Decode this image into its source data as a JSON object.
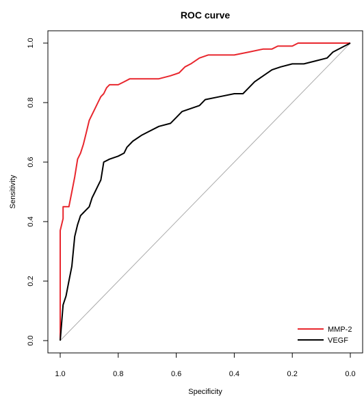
{
  "chart_data": {
    "type": "line",
    "title": "ROC curve",
    "xlabel": "Specificity",
    "ylabel": "Sensitivity",
    "xlim": [
      1.0,
      0.0
    ],
    "ylim": [
      0.0,
      1.0
    ],
    "x_reversed": true,
    "x_ticks": [
      1.0,
      0.8,
      0.6,
      0.4,
      0.2,
      0.0
    ],
    "y_ticks": [
      0.0,
      0.2,
      0.4,
      0.6,
      0.8,
      1.0
    ],
    "x_tick_labels": [
      "1.0",
      "0.8",
      "0.6",
      "0.4",
      "0.2",
      "0.0"
    ],
    "y_tick_labels": [
      "0.0",
      "0.2",
      "0.4",
      "0.6",
      "0.8",
      "1.0"
    ],
    "grid": false,
    "legend_position": "bottom-right",
    "reference_line": {
      "from": [
        1.0,
        0.0
      ],
      "to": [
        0.0,
        1.0
      ],
      "color": "#aaaaaa"
    },
    "series": [
      {
        "name": "MMP-2",
        "color": "#e8262d",
        "points": [
          [
            1.0,
            0.0
          ],
          [
            1.0,
            0.37
          ],
          [
            0.99,
            0.41
          ],
          [
            0.99,
            0.45
          ],
          [
            0.97,
            0.45
          ],
          [
            0.96,
            0.5
          ],
          [
            0.95,
            0.55
          ],
          [
            0.94,
            0.61
          ],
          [
            0.93,
            0.63
          ],
          [
            0.92,
            0.66
          ],
          [
            0.91,
            0.7
          ],
          [
            0.9,
            0.74
          ],
          [
            0.89,
            0.76
          ],
          [
            0.88,
            0.78
          ],
          [
            0.87,
            0.8
          ],
          [
            0.86,
            0.82
          ],
          [
            0.85,
            0.83
          ],
          [
            0.84,
            0.85
          ],
          [
            0.83,
            0.86
          ],
          [
            0.8,
            0.86
          ],
          [
            0.78,
            0.87
          ],
          [
            0.76,
            0.88
          ],
          [
            0.7,
            0.88
          ],
          [
            0.66,
            0.88
          ],
          [
            0.62,
            0.89
          ],
          [
            0.59,
            0.9
          ],
          [
            0.57,
            0.92
          ],
          [
            0.55,
            0.93
          ],
          [
            0.52,
            0.95
          ],
          [
            0.49,
            0.96
          ],
          [
            0.4,
            0.96
          ],
          [
            0.35,
            0.97
          ],
          [
            0.3,
            0.98
          ],
          [
            0.27,
            0.98
          ],
          [
            0.25,
            0.99
          ],
          [
            0.2,
            0.99
          ],
          [
            0.18,
            1.0
          ],
          [
            0.0,
            1.0
          ]
        ]
      },
      {
        "name": "VEGF",
        "color": "#000000",
        "points": [
          [
            1.0,
            0.0
          ],
          [
            0.99,
            0.12
          ],
          [
            0.98,
            0.15
          ],
          [
            0.97,
            0.2
          ],
          [
            0.96,
            0.25
          ],
          [
            0.955,
            0.3
          ],
          [
            0.95,
            0.35
          ],
          [
            0.94,
            0.39
          ],
          [
            0.93,
            0.42
          ],
          [
            0.92,
            0.43
          ],
          [
            0.91,
            0.44
          ],
          [
            0.9,
            0.45
          ],
          [
            0.89,
            0.48
          ],
          [
            0.88,
            0.5
          ],
          [
            0.87,
            0.52
          ],
          [
            0.86,
            0.54
          ],
          [
            0.855,
            0.57
          ],
          [
            0.85,
            0.6
          ],
          [
            0.83,
            0.61
          ],
          [
            0.8,
            0.62
          ],
          [
            0.78,
            0.63
          ],
          [
            0.77,
            0.65
          ],
          [
            0.75,
            0.67
          ],
          [
            0.72,
            0.69
          ],
          [
            0.7,
            0.7
          ],
          [
            0.66,
            0.72
          ],
          [
            0.62,
            0.73
          ],
          [
            0.6,
            0.75
          ],
          [
            0.58,
            0.77
          ],
          [
            0.55,
            0.78
          ],
          [
            0.52,
            0.79
          ],
          [
            0.5,
            0.81
          ],
          [
            0.45,
            0.82
          ],
          [
            0.4,
            0.83
          ],
          [
            0.37,
            0.83
          ],
          [
            0.35,
            0.85
          ],
          [
            0.33,
            0.87
          ],
          [
            0.3,
            0.89
          ],
          [
            0.27,
            0.91
          ],
          [
            0.24,
            0.92
          ],
          [
            0.2,
            0.93
          ],
          [
            0.16,
            0.93
          ],
          [
            0.12,
            0.94
          ],
          [
            0.08,
            0.95
          ],
          [
            0.06,
            0.97
          ],
          [
            0.04,
            0.98
          ],
          [
            0.02,
            0.99
          ],
          [
            0.0,
            1.0
          ]
        ]
      }
    ]
  }
}
